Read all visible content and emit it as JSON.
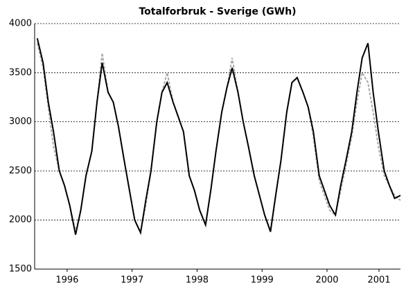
{
  "chart_data": {
    "type": "line",
    "title": "Totalforbruk - Sverige (GWh)",
    "x": [
      1996.04,
      1996.13,
      1996.21,
      1996.29,
      1996.38,
      1996.46,
      1996.54,
      1996.63,
      1996.71,
      1996.79,
      1996.88,
      1996.96,
      1997.04,
      1997.13,
      1997.21,
      1997.29,
      1997.38,
      1997.46,
      1997.54,
      1997.63,
      1997.71,
      1997.79,
      1997.88,
      1997.96,
      1998.04,
      1998.13,
      1998.21,
      1998.29,
      1998.38,
      1998.46,
      1998.54,
      1998.63,
      1998.71,
      1998.79,
      1998.88,
      1998.96,
      1999.04,
      1999.13,
      1999.21,
      1999.29,
      1999.38,
      1999.46,
      1999.54,
      1999.63,
      1999.71,
      1999.79,
      1999.88,
      1999.96,
      2000.04,
      2000.13,
      2000.21,
      2000.29,
      2000.38,
      2000.46,
      2000.54,
      2000.63,
      2000.71,
      2000.79,
      2000.88,
      2000.96,
      2001.04,
      2001.13,
      2001.21,
      2001.29,
      2001.38,
      2001.46,
      2001.54,
      2001.63
    ],
    "series": [
      {
        "color": "#aaaaaa",
        "dashed": true,
        "values": [
          3800,
          3550,
          3150,
          2750,
          2500,
          2350,
          2150,
          1880,
          2100,
          2450,
          2700,
          3200,
          3700,
          3300,
          3200,
          2950,
          2600,
          2300,
          2000,
          1880,
          2150,
          2500,
          3000,
          3300,
          3500,
          3200,
          3050,
          2900,
          2450,
          2300,
          2100,
          1950,
          2300,
          2700,
          3100,
          3350,
          3650,
          3300,
          3000,
          2750,
          2450,
          2250,
          2050,
          1900,
          2250,
          2600,
          3100,
          3400,
          3450,
          3300,
          3150,
          2850,
          2400,
          2250,
          2100,
          2050,
          2300,
          2550,
          2850,
          3200,
          3500,
          3400,
          3100,
          2750,
          2450,
          2350,
          2250,
          2200
        ]
      },
      {
        "color": "#000000",
        "dashed": false,
        "values": [
          3850,
          3600,
          3200,
          2900,
          2500,
          2350,
          2150,
          1850,
          2100,
          2450,
          2700,
          3200,
          3600,
          3300,
          3200,
          2950,
          2600,
          2300,
          2000,
          1870,
          2200,
          2500,
          3000,
          3300,
          3400,
          3200,
          3050,
          2900,
          2450,
          2300,
          2100,
          1950,
          2300,
          2700,
          3100,
          3350,
          3550,
          3300,
          3000,
          2750,
          2450,
          2250,
          2050,
          1880,
          2250,
          2600,
          3100,
          3400,
          3450,
          3300,
          3150,
          2900,
          2450,
          2300,
          2150,
          2050,
          2350,
          2600,
          2900,
          3300,
          3650,
          3800,
          3300,
          2900,
          2500,
          2350,
          2220,
          2250
        ]
      }
    ],
    "xlim": [
      1996.0,
      2001.63
    ],
    "xticks": [
      {
        "value": 1996.5,
        "label": "1996"
      },
      {
        "value": 1997.5,
        "label": "1997"
      },
      {
        "value": 1998.5,
        "label": "1998"
      },
      {
        "value": 1999.5,
        "label": "1999"
      },
      {
        "value": 2000.5,
        "label": "2000"
      },
      {
        "value": 2001.3,
        "label": "2001"
      }
    ],
    "ylim": [
      1500,
      4000
    ],
    "yticks": [
      1500,
      2000,
      2500,
      3000,
      3500,
      4000
    ],
    "grid": true
  }
}
